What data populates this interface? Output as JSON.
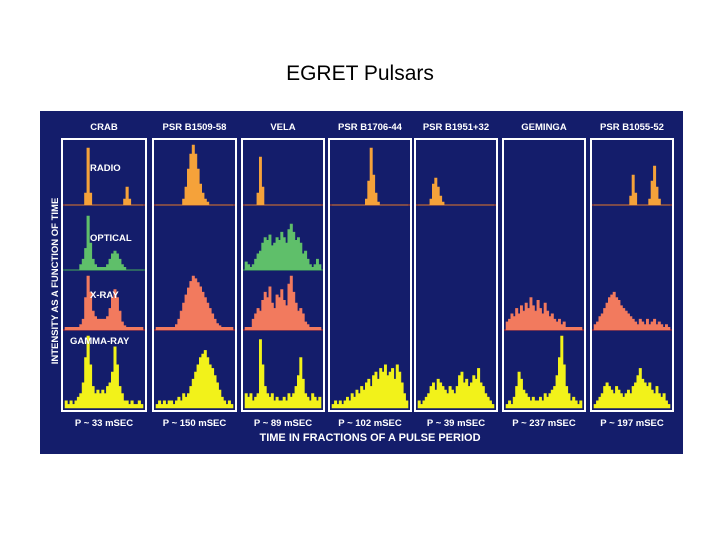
{
  "title": "EGRET Pulsars",
  "colors": {
    "background": "#141d6b",
    "panel_border": "#ffffff",
    "radio": "#f5a23a",
    "optical": "#5fbf6a",
    "xray": "#f27a5e",
    "gamma": "#f2f21a",
    "text": "#ffffff",
    "baseline_radio": "#d24a1a",
    "baseline_optical": "#2e9a4a",
    "baseline_xray": "#c01818"
  },
  "chart_data": {
    "type": "area",
    "y_axis_label": "INTENSITY AS A FUNCTION OF TIME",
    "x_axis_label": "TIME IN FRACTIONS OF A PULSE PERIOD",
    "band_labels": [
      "RADIO",
      "OPTICAL",
      "X-RAY",
      "GAMMA-RAY"
    ],
    "pulsars": [
      {
        "name": "CRAB",
        "period": "P ~ 33 mSEC",
        "radio": [
          0,
          0,
          0,
          0,
          0,
          0,
          0,
          0,
          0.2,
          0.95,
          0.2,
          0,
          0,
          0,
          0,
          0,
          0,
          0,
          0,
          0,
          0,
          0,
          0,
          0,
          0.1,
          0.3,
          0.1,
          0,
          0,
          0,
          0,
          0
        ],
        "optical": [
          0,
          0,
          0,
          0,
          0,
          0,
          0.1,
          0.2,
          0.4,
          1.0,
          0.5,
          0.2,
          0.1,
          0.05,
          0.05,
          0.05,
          0.05,
          0.1,
          0.2,
          0.3,
          0.35,
          0.3,
          0.2,
          0.1,
          0.05,
          0,
          0,
          0,
          0,
          0,
          0,
          0
        ],
        "xray": [
          0.05,
          0.05,
          0.05,
          0.05,
          0.05,
          0.05,
          0.1,
          0.2,
          0.6,
          1.0,
          0.7,
          0.35,
          0.25,
          0.2,
          0.2,
          0.2,
          0.2,
          0.25,
          0.4,
          0.6,
          0.75,
          0.6,
          0.35,
          0.15,
          0.08,
          0.05,
          0.05,
          0.05,
          0.05,
          0.05,
          0.05,
          0.05
        ],
        "gamma": [
          0.1,
          0.05,
          0.1,
          0.05,
          0.1,
          0.15,
          0.2,
          0.35,
          0.7,
          1.0,
          0.6,
          0.3,
          0.2,
          0.25,
          0.2,
          0.25,
          0.2,
          0.3,
          0.35,
          0.5,
          0.85,
          0.6,
          0.3,
          0.2,
          0.1,
          0.1,
          0.05,
          0.1,
          0.05,
          0.05,
          0.1,
          0.05
        ]
      },
      {
        "name": "PSR B1509-58",
        "period": "P ~ 150 mSEC",
        "radio": [
          0,
          0,
          0,
          0,
          0,
          0,
          0,
          0,
          0,
          0,
          0,
          0.1,
          0.3,
          0.6,
          0.85,
          1.0,
          0.85,
          0.6,
          0.35,
          0.2,
          0.1,
          0.05,
          0,
          0,
          0,
          0,
          0,
          0,
          0,
          0,
          0,
          0
        ],
        "optical": null,
        "xray": [
          0.05,
          0.05,
          0.05,
          0.05,
          0.05,
          0.05,
          0.05,
          0.05,
          0.1,
          0.2,
          0.35,
          0.5,
          0.65,
          0.78,
          0.9,
          1.0,
          0.95,
          0.88,
          0.8,
          0.7,
          0.6,
          0.5,
          0.4,
          0.3,
          0.2,
          0.12,
          0.08,
          0.05,
          0.05,
          0.05,
          0.05,
          0.05
        ],
        "gamma": [
          0.05,
          0.1,
          0.05,
          0.1,
          0.05,
          0.1,
          0.1,
          0.05,
          0.1,
          0.15,
          0.1,
          0.2,
          0.15,
          0.2,
          0.3,
          0.4,
          0.5,
          0.6,
          0.7,
          0.75,
          0.8,
          0.7,
          0.6,
          0.55,
          0.45,
          0.35,
          0.25,
          0.15,
          0.1,
          0.05,
          0.1,
          0.05
        ]
      },
      {
        "name": "VELA",
        "period": "P ~ 89 mSEC",
        "radio": [
          0,
          0,
          0,
          0,
          0,
          0.2,
          0.8,
          0.3,
          0,
          0,
          0,
          0,
          0,
          0,
          0,
          0,
          0,
          0,
          0,
          0,
          0,
          0,
          0,
          0,
          0,
          0,
          0,
          0,
          0,
          0,
          0,
          0
        ],
        "optical": [
          0.15,
          0.1,
          0.05,
          0.1,
          0.2,
          0.3,
          0.35,
          0.5,
          0.6,
          0.55,
          0.65,
          0.45,
          0.5,
          0.6,
          0.55,
          0.7,
          0.6,
          0.5,
          0.75,
          0.85,
          0.7,
          0.55,
          0.6,
          0.5,
          0.3,
          0.35,
          0.2,
          0.1,
          0.05,
          0.1,
          0.2,
          0.1
        ],
        "xray": [
          0.05,
          0.05,
          0.05,
          0.2,
          0.3,
          0.4,
          0.35,
          0.55,
          0.7,
          0.6,
          0.8,
          0.5,
          0.4,
          0.65,
          0.6,
          0.75,
          0.55,
          0.45,
          0.85,
          1.0,
          0.7,
          0.5,
          0.35,
          0.4,
          0.3,
          0.15,
          0.1,
          0.05,
          0.05,
          0.05,
          0.05,
          0.05
        ],
        "gamma": [
          0.2,
          0.15,
          0.2,
          0.1,
          0.15,
          0.2,
          0.95,
          0.6,
          0.3,
          0.2,
          0.15,
          0.2,
          0.1,
          0.15,
          0.1,
          0.1,
          0.15,
          0.1,
          0.2,
          0.15,
          0.2,
          0.3,
          0.45,
          0.7,
          0.4,
          0.2,
          0.15,
          0.1,
          0.2,
          0.15,
          0.1,
          0.15
        ]
      },
      {
        "name": "PSR B1706-44",
        "period": "P ~ 102 mSEC",
        "radio": [
          0,
          0,
          0,
          0,
          0,
          0,
          0,
          0,
          0,
          0,
          0,
          0,
          0,
          0,
          0.1,
          0.4,
          0.95,
          0.5,
          0.2,
          0.05,
          0,
          0,
          0,
          0,
          0,
          0,
          0,
          0,
          0,
          0,
          0,
          0
        ],
        "optical": null,
        "xray": null,
        "gamma": [
          0.05,
          0.1,
          0.05,
          0.1,
          0.05,
          0.1,
          0.15,
          0.1,
          0.2,
          0.15,
          0.25,
          0.2,
          0.3,
          0.25,
          0.35,
          0.4,
          0.3,
          0.45,
          0.5,
          0.4,
          0.55,
          0.5,
          0.6,
          0.45,
          0.5,
          0.55,
          0.4,
          0.6,
          0.5,
          0.35,
          0.2,
          0.1
        ]
      },
      {
        "name": "PSR B1951+32",
        "period": "P ~ 39 mSEC",
        "radio": [
          0,
          0,
          0,
          0,
          0,
          0.1,
          0.35,
          0.45,
          0.3,
          0.15,
          0.05,
          0,
          0,
          0,
          0,
          0,
          0,
          0,
          0,
          0,
          0,
          0,
          0,
          0,
          0,
          0,
          0,
          0,
          0,
          0,
          0,
          0
        ],
        "optical": null,
        "xray": null,
        "gamma": [
          0.1,
          0.05,
          0.1,
          0.15,
          0.2,
          0.3,
          0.35,
          0.25,
          0.4,
          0.35,
          0.3,
          0.25,
          0.2,
          0.3,
          0.25,
          0.2,
          0.3,
          0.45,
          0.5,
          0.35,
          0.4,
          0.3,
          0.35,
          0.45,
          0.4,
          0.55,
          0.35,
          0.3,
          0.2,
          0.15,
          0.1,
          0.05
        ]
      },
      {
        "name": "GEMINGA",
        "period": "P ~  237 mSEC",
        "radio": null,
        "optical": null,
        "xray": [
          0.15,
          0.2,
          0.3,
          0.25,
          0.4,
          0.3,
          0.45,
          0.35,
          0.5,
          0.4,
          0.6,
          0.45,
          0.35,
          0.55,
          0.4,
          0.3,
          0.5,
          0.35,
          0.25,
          0.3,
          0.2,
          0.15,
          0.2,
          0.1,
          0.15,
          0.05,
          0.05,
          0.05,
          0.05,
          0.05,
          0.05,
          0.05
        ],
        "gamma": [
          0.05,
          0.1,
          0.05,
          0.15,
          0.3,
          0.5,
          0.4,
          0.25,
          0.2,
          0.15,
          0.1,
          0.15,
          0.1,
          0.1,
          0.15,
          0.1,
          0.2,
          0.15,
          0.2,
          0.25,
          0.3,
          0.45,
          0.7,
          1.0,
          0.6,
          0.3,
          0.2,
          0.1,
          0.15,
          0.1,
          0.05,
          0.1
        ]
      },
      {
        "name": "PSR B1055-52",
        "period": "P ~ 197 mSEC",
        "radio": [
          0,
          0,
          0,
          0,
          0,
          0,
          0,
          0,
          0,
          0,
          0,
          0,
          0,
          0,
          0,
          0.15,
          0.5,
          0.2,
          0,
          0,
          0,
          0,
          0,
          0.1,
          0.4,
          0.65,
          0.3,
          0.1,
          0,
          0,
          0,
          0
        ],
        "optical": null,
        "xray": [
          0.1,
          0.15,
          0.25,
          0.3,
          0.4,
          0.5,
          0.6,
          0.65,
          0.7,
          0.6,
          0.55,
          0.45,
          0.4,
          0.35,
          0.3,
          0.25,
          0.2,
          0.15,
          0.1,
          0.2,
          0.15,
          0.1,
          0.2,
          0.1,
          0.15,
          0.2,
          0.1,
          0.15,
          0.1,
          0.05,
          0.1,
          0.05
        ],
        "gamma": [
          0.05,
          0.1,
          0.15,
          0.2,
          0.3,
          0.35,
          0.3,
          0.25,
          0.2,
          0.3,
          0.25,
          0.2,
          0.15,
          0.2,
          0.25,
          0.2,
          0.3,
          0.35,
          0.45,
          0.55,
          0.4,
          0.35,
          0.3,
          0.35,
          0.25,
          0.2,
          0.3,
          0.2,
          0.15,
          0.2,
          0.1,
          0.05
        ]
      }
    ]
  }
}
